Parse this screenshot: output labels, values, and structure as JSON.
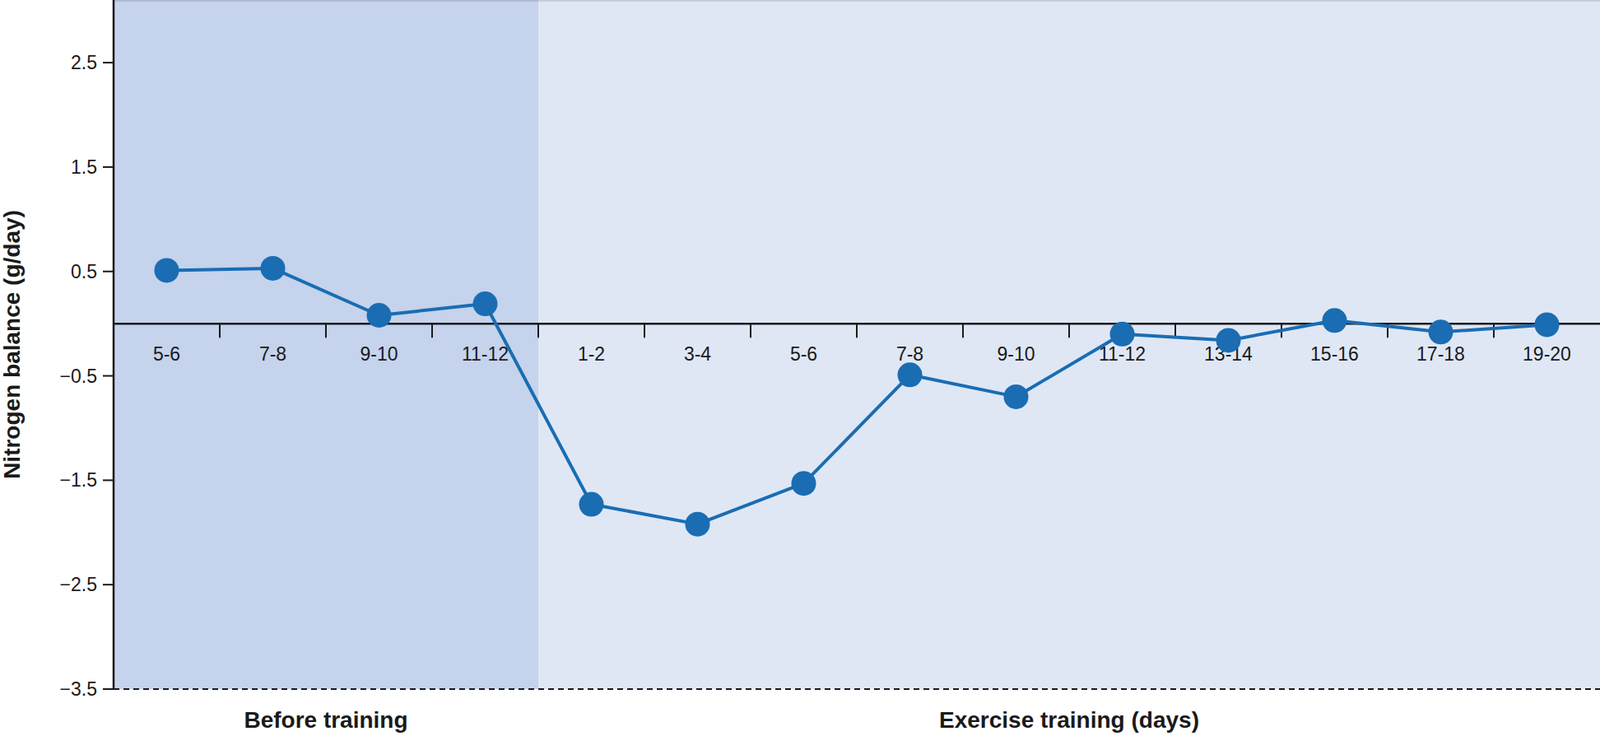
{
  "chart_data": {
    "type": "line",
    "ylabel": "Nitrogen balance (g/day)",
    "categories": [
      "5-6",
      "7-8",
      "9-10",
      "11-12",
      "1-2",
      "3-4",
      "5-6",
      "7-8",
      "9-10",
      "11-12",
      "13-14",
      "15-16",
      "17-18",
      "19-20"
    ],
    "values": [
      0.51,
      0.53,
      0.08,
      0.19,
      -1.73,
      -1.92,
      -1.53,
      -0.49,
      -0.7,
      -0.1,
      -0.16,
      0.03,
      -0.08,
      -0.01
    ],
    "color": "#1a6db3",
    "marker": "circle",
    "ylim": [
      -3.5,
      3.1
    ],
    "yticks": [
      {
        "value": -3.5,
        "label": "−3.5"
      },
      {
        "value": -2.5,
        "label": "−2.5"
      },
      {
        "value": -1.5,
        "label": "−1.5"
      },
      {
        "value": -0.5,
        "label": "−0.5"
      },
      0.5,
      1.5,
      2.5
    ],
    "regions": [
      {
        "label": "Before training",
        "start": 0,
        "end": 3
      },
      {
        "label": "Exercise training (days)",
        "start": 4,
        "end": 13
      }
    ]
  }
}
